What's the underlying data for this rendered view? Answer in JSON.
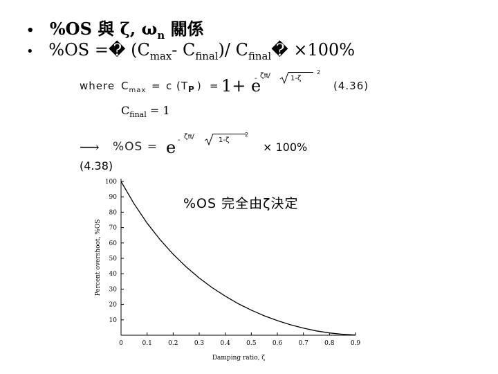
{
  "bullets": [
    {
      "bullet": "•",
      "text_html": "%OS 與 ζ, ω<sub>n</sub> 關係"
    },
    {
      "bullet": "•",
      "text_html": "%OS =� (C<sub>max</sub>- C<sub>final</sub>)/ C<sub>final</sub>� ×100%"
    }
  ],
  "eq436": {
    "where": "where",
    "cmax": "C",
    "cmax_sub": "max",
    "equals1": "=",
    "c_of_tp": "c (T",
    "tp_sub": "P",
    "close": ")",
    "equals2": "=",
    "one_plus_e": "1+ e",
    "exp_neg": "-",
    "exp_num": "ζπ/",
    "exp_den": "1-ζ",
    "exp_sq": "2",
    "eq_number": "(4.36)"
  },
  "cfinal": {
    "c": "C",
    "sub": "final",
    "rest": " = 1"
  },
  "eq438": {
    "arrow": "⟶",
    "os": "%OS =",
    "e": "e",
    "exp_neg": "-",
    "exp_num": "ζπ/",
    "exp_den": "1-ζ",
    "exp_sq": "2",
    "times": "× 100%",
    "eq_number": "(4.38)"
  },
  "note": "%OS 完全由ζ決定",
  "chart_data": {
    "type": "line",
    "xlabel": "Damping ratio, ζ",
    "ylabel": "Percent overshoot, %OS",
    "xlim": [
      0,
      0.9
    ],
    "ylim": [
      0,
      100
    ],
    "xticks": [
      "0",
      "0.1",
      "0.2",
      "0.3",
      "0.4",
      "0.5",
      "0.6",
      "0.7",
      "0.8",
      "0.9"
    ],
    "yticks": [
      "10",
      "20",
      "30",
      "40",
      "50",
      "60",
      "70",
      "80",
      "90",
      "100"
    ],
    "grid": false,
    "series": [
      {
        "x": [
          0,
          0.05,
          0.1,
          0.15,
          0.2,
          0.25,
          0.3,
          0.35,
          0.4,
          0.45,
          0.5,
          0.55,
          0.6,
          0.65,
          0.7,
          0.75,
          0.8,
          0.85,
          0.9
        ],
        "y": [
          100,
          85.5,
          72.9,
          62.1,
          52.7,
          44.4,
          37.2,
          30.9,
          25.4,
          20.5,
          16.3,
          12.6,
          9.5,
          6.8,
          4.6,
          2.8,
          1.5,
          0.6,
          0.15
        ]
      }
    ]
  }
}
